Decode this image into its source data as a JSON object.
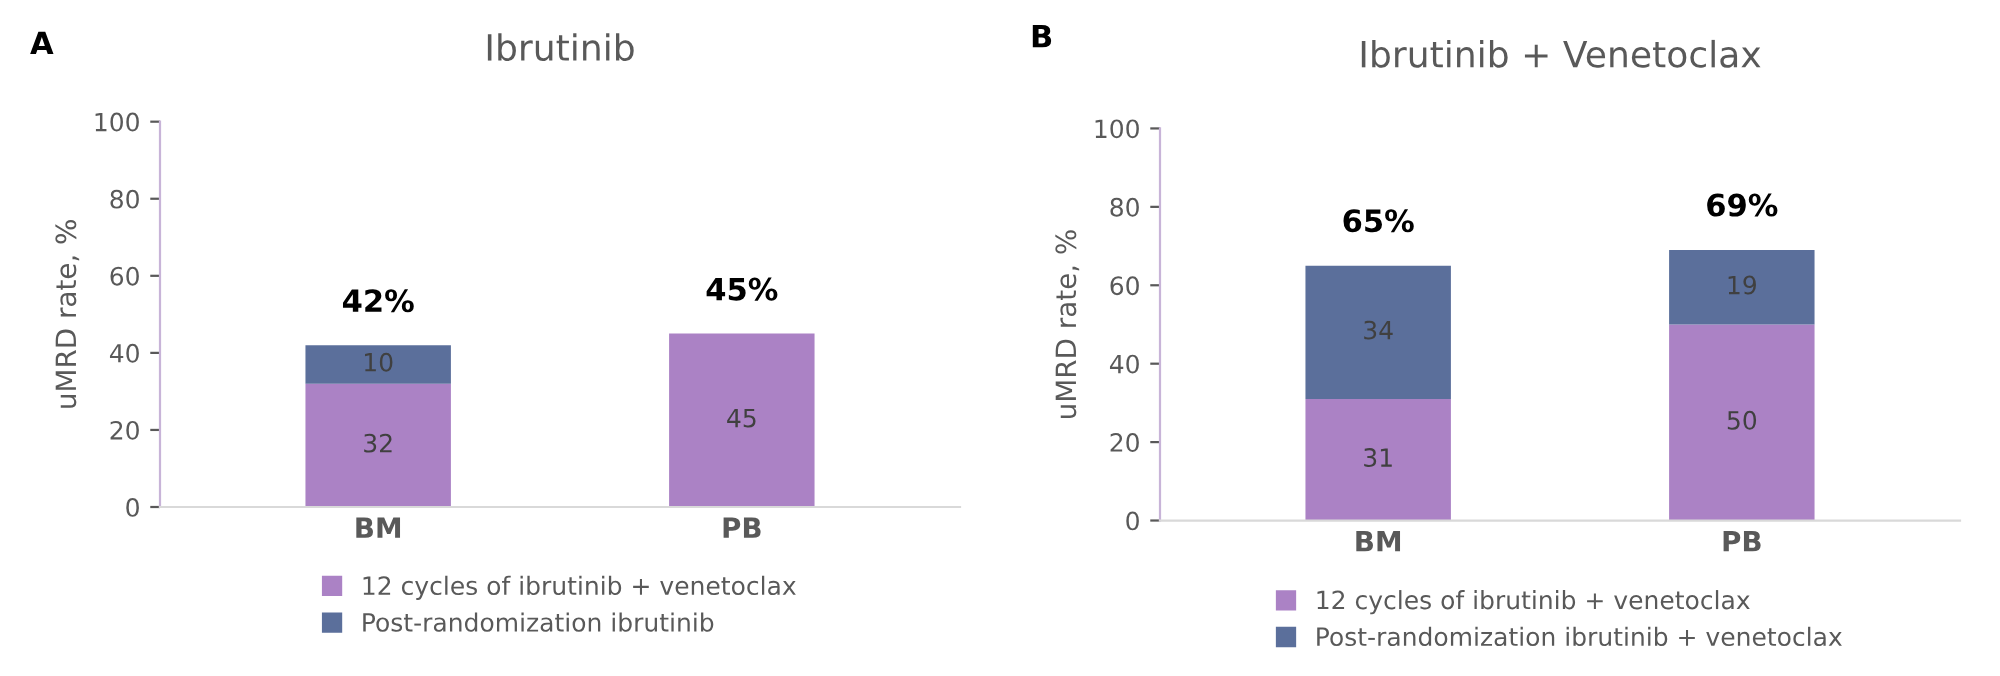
{
  "chart_data": [
    {
      "type": "bar",
      "title": "Ibrutinib",
      "ylabel": "uMRD rate, %",
      "categories": [
        "BM",
        "PB"
      ],
      "stacked": true,
      "ylim": [
        0,
        100
      ],
      "yticks": [
        0,
        20,
        40,
        60,
        80,
        100
      ],
      "grid": false,
      "legend": "bottom",
      "data_labels": true,
      "totals": [
        "42%",
        "45%"
      ],
      "annotations": [
        "A"
      ],
      "series": [
        {
          "name": "12 cycles of ibrutinib + venetoclax",
          "color": "#ab82c5",
          "values": [
            32,
            45
          ]
        },
        {
          "name": "Post-randomization ibrutinib",
          "color": "#5b6f9b",
          "values": [
            10,
            null
          ]
        }
      ]
    },
    {
      "type": "bar",
      "title": "Ibrutinib + Venetoclax",
      "ylabel": "uMRD rate, %",
      "categories": [
        "BM",
        "PB"
      ],
      "stacked": true,
      "ylim": [
        0,
        100
      ],
      "yticks": [
        0,
        20,
        40,
        60,
        80,
        100
      ],
      "grid": false,
      "legend": "bottom",
      "data_labels": true,
      "totals": [
        "65%",
        "69%"
      ],
      "annotations": [
        "B"
      ],
      "series": [
        {
          "name": "12 cycles of ibrutinib + venetoclax",
          "color": "#ab82c5",
          "values": [
            31,
            50
          ]
        },
        {
          "name": "Post-randomization ibrutinib + venetoclax",
          "color": "#5b6f9b",
          "values": [
            34,
            19
          ]
        }
      ]
    }
  ]
}
